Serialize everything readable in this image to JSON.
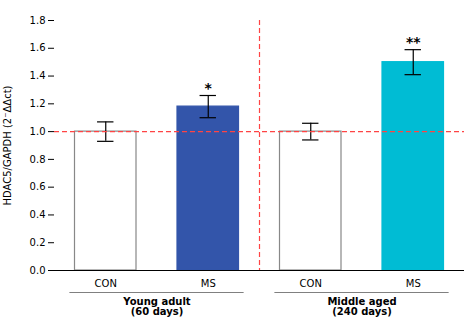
{
  "chart_data": {
    "type": "bar",
    "categories": [
      "CON",
      "MS",
      "CON",
      "MS"
    ],
    "values": [
      1.0,
      1.18,
      1.0,
      1.5
    ],
    "errors": [
      0.07,
      0.08,
      0.06,
      0.09
    ],
    "colors": [
      "white",
      "#3355aa",
      "white",
      "#00bcd4"
    ],
    "edge_colors": [
      "#888888",
      "#3355aa",
      "#888888",
      "#00bcd4"
    ],
    "groups": [
      "Young adult\n(60 days)",
      "Young adult\n(60 days)",
      "Middle aged\n(240 days)",
      "Middle aged\n(240 days)"
    ],
    "annotations": [
      null,
      "*",
      null,
      "**"
    ],
    "ylabel": "HDAC5/GAPDH (2⁻ΔΔct)",
    "ylim": [
      0.0,
      1.8
    ],
    "yticks": [
      {
        "value": 0.0,
        "label": "0.0"
      },
      0.2,
      0.4,
      0.6,
      0.8,
      {
        "value": 1.0,
        "label": "1.0"
      },
      1.2,
      1.4,
      1.6,
      1.8
    ],
    "reference_line": {
      "y": 1.0,
      "color": "#ff4444"
    },
    "grid": false
  }
}
